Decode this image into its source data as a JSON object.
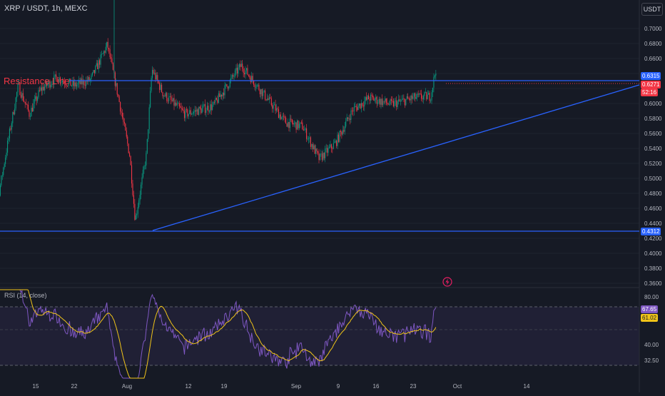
{
  "header": {
    "symbol": "XRP / USDT, 1h, MEXC",
    "currency_button": "USDT"
  },
  "rsi": {
    "label": "RSI (14, close)",
    "axis_labels": [
      "80.00",
      "40.00",
      "32.50"
    ],
    "value_rsi": "67.65",
    "value_ma": "61.02",
    "band_upper": 70,
    "band_lower": 30,
    "colors": {
      "rsi": "#7e57c2",
      "ma": "#f0c419",
      "band": "rgba(126,87,194,0.10)"
    }
  },
  "annotation": {
    "resistance": "Resistance Line"
  },
  "price_axis": [
    "0.7000",
    "0.6800",
    "0.6600",
    "0.6315",
    "0.6000",
    "0.5800",
    "0.5600",
    "0.5400",
    "0.5200",
    "0.5000",
    "0.4800",
    "0.4600",
    "0.4400",
    "0.4312",
    "0.4200",
    "0.4000",
    "0.3800",
    "0.3600"
  ],
  "tags": {
    "resistance": "0.6315",
    "last_price": "0.6271",
    "countdown": "52:16",
    "support": "0.4312"
  },
  "date_axis": [
    "15",
    "22",
    "Aug",
    "12",
    "19",
    "Sep",
    "9",
    "16",
    "23",
    "Oct",
    "14"
  ],
  "colors": {
    "background": "#161a25",
    "up": "#089981",
    "down": "#f23645",
    "line": "#2962ff",
    "grid": "#1f2430"
  },
  "chart_data": {
    "type": "candlestick",
    "title": "XRP / USDT, 1h, MEXC",
    "y_range": [
      0.36,
      0.71
    ],
    "x_labels": [
      "15",
      "22",
      "Aug",
      "12",
      "19",
      "Sep",
      "9",
      "16",
      "23",
      "Oct",
      "14"
    ],
    "horizontal_lines": [
      {
        "name": "Resistance Line",
        "value": 0.6315
      },
      {
        "value": 0.4312
      }
    ],
    "trendline": {
      "from": {
        "date": "Aug 5",
        "value": 0.4312
      },
      "to": {
        "date": "Oct 4",
        "value": 0.6245
      }
    },
    "price_path": [
      {
        "date": "Jul 9",
        "value": 0.43
      },
      {
        "date": "Jul 11",
        "value": 0.452
      },
      {
        "date": "Jul 13",
        "value": 0.53
      },
      {
        "date": "Jul 15",
        "value": 0.605
      },
      {
        "date": "Jul 17",
        "value": 0.57
      },
      {
        "date": "Jul 19",
        "value": 0.6
      },
      {
        "date": "Jul 22",
        "value": 0.615
      },
      {
        "date": "Jul 25",
        "value": 0.605
      },
      {
        "date": "Jul 28",
        "value": 0.612
      },
      {
        "date": "Jul 31",
        "value": 0.655
      },
      {
        "date": "Aug 2",
        "value": 0.59
      },
      {
        "date": "Aug 4",
        "value": 0.52
      },
      {
        "date": "Aug 5",
        "value": 0.44
      },
      {
        "date": "Aug 7",
        "value": 0.52
      },
      {
        "date": "Aug 8",
        "value": 0.625
      },
      {
        "date": "Aug 10",
        "value": 0.595
      },
      {
        "date": "Aug 14",
        "value": 0.57
      },
      {
        "date": "Aug 19",
        "value": 0.58
      },
      {
        "date": "Aug 24",
        "value": 0.63
      },
      {
        "date": "Aug 28",
        "value": 0.595
      },
      {
        "date": "Sep 1",
        "value": 0.56
      },
      {
        "date": "Sep 4",
        "value": 0.555
      },
      {
        "date": "Sep 7",
        "value": 0.515
      },
      {
        "date": "Sep 10",
        "value": 0.535
      },
      {
        "date": "Sep 13",
        "value": 0.575
      },
      {
        "date": "Sep 16",
        "value": 0.59
      },
      {
        "date": "Sep 20",
        "value": 0.582
      },
      {
        "date": "Sep 24",
        "value": 0.59
      },
      {
        "date": "Sep 27",
        "value": 0.592
      },
      {
        "date": "Sep 28",
        "value": 0.6271
      }
    ]
  }
}
